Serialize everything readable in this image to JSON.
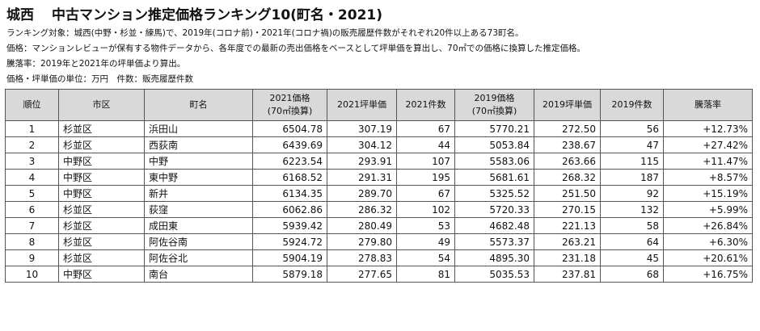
{
  "header": {
    "region": "城西",
    "title": "中古マンション推定価格ランキング10(町名・2021)"
  },
  "notes": [
    "ランキング対象：城西(中野・杉並・練馬)で、2019年(コロナ前)・2021年(コロナ禍)の販売履歴件数がそれぞれ20件以上ある73町名。",
    "価格：マンションレビューが保有する物件データから、各年度での最新の売出価格をベースとして坪単価を算出し、70㎡での価格に換算した推定価格。",
    "騰落率：2019年と2021年の坪単価より算出。",
    "価格・坪単価の単位：万円　件数：販売履歴件数"
  ],
  "table": {
    "columns": {
      "rank": "順位",
      "ward": "市区",
      "town": "町名",
      "price2021": "2021価格",
      "price2021_sub": "(70㎡換算)",
      "tsubo2021": "2021坪単価",
      "count2021": "2021件数",
      "price2019": "2019価格",
      "price2019_sub": "(70㎡換算)",
      "tsubo2019": "2019坪単価",
      "count2019": "2019件数",
      "change": "騰落率"
    },
    "rows": [
      {
        "rank": "1",
        "ward": "杉並区",
        "town": "浜田山",
        "price2021": "6504.78",
        "tsubo2021": "307.19",
        "count2021": "67",
        "price2019": "5770.21",
        "tsubo2019": "272.50",
        "count2019": "56",
        "change": "+12.73%"
      },
      {
        "rank": "2",
        "ward": "杉並区",
        "town": "西荻南",
        "price2021": "6439.69",
        "tsubo2021": "304.12",
        "count2021": "44",
        "price2019": "5053.84",
        "tsubo2019": "238.67",
        "count2019": "47",
        "change": "+27.42%"
      },
      {
        "rank": "3",
        "ward": "中野区",
        "town": "中野",
        "price2021": "6223.54",
        "tsubo2021": "293.91",
        "count2021": "107",
        "price2019": "5583.06",
        "tsubo2019": "263.66",
        "count2019": "115",
        "change": "+11.47%"
      },
      {
        "rank": "4",
        "ward": "中野区",
        "town": "東中野",
        "price2021": "6168.52",
        "tsubo2021": "291.31",
        "count2021": "195",
        "price2019": "5681.61",
        "tsubo2019": "268.32",
        "count2019": "187",
        "change": "+8.57%"
      },
      {
        "rank": "5",
        "ward": "中野区",
        "town": "新井",
        "price2021": "6134.35",
        "tsubo2021": "289.70",
        "count2021": "67",
        "price2019": "5325.52",
        "tsubo2019": "251.50",
        "count2019": "92",
        "change": "+15.19%"
      },
      {
        "rank": "6",
        "ward": "杉並区",
        "town": "荻窪",
        "price2021": "6062.86",
        "tsubo2021": "286.32",
        "count2021": "102",
        "price2019": "5720.33",
        "tsubo2019": "270.15",
        "count2019": "132",
        "change": "+5.99%"
      },
      {
        "rank": "7",
        "ward": "杉並区",
        "town": "成田東",
        "price2021": "5939.42",
        "tsubo2021": "280.49",
        "count2021": "53",
        "price2019": "4682.48",
        "tsubo2019": "221.13",
        "count2019": "58",
        "change": "+26.84%"
      },
      {
        "rank": "8",
        "ward": "杉並区",
        "town": "阿佐谷南",
        "price2021": "5924.72",
        "tsubo2021": "279.80",
        "count2021": "49",
        "price2019": "5573.37",
        "tsubo2019": "263.21",
        "count2019": "64",
        "change": "+6.30%"
      },
      {
        "rank": "9",
        "ward": "杉並区",
        "town": "阿佐谷北",
        "price2021": "5904.19",
        "tsubo2021": "278.83",
        "count2021": "54",
        "price2019": "4895.30",
        "tsubo2019": "231.18",
        "count2019": "45",
        "change": "+20.61%"
      },
      {
        "rank": "10",
        "ward": "中野区",
        "town": "南台",
        "price2021": "5879.18",
        "tsubo2021": "277.65",
        "count2021": "81",
        "price2019": "5035.53",
        "tsubo2019": "237.81",
        "count2019": "68",
        "change": "+16.75%"
      }
    ]
  }
}
